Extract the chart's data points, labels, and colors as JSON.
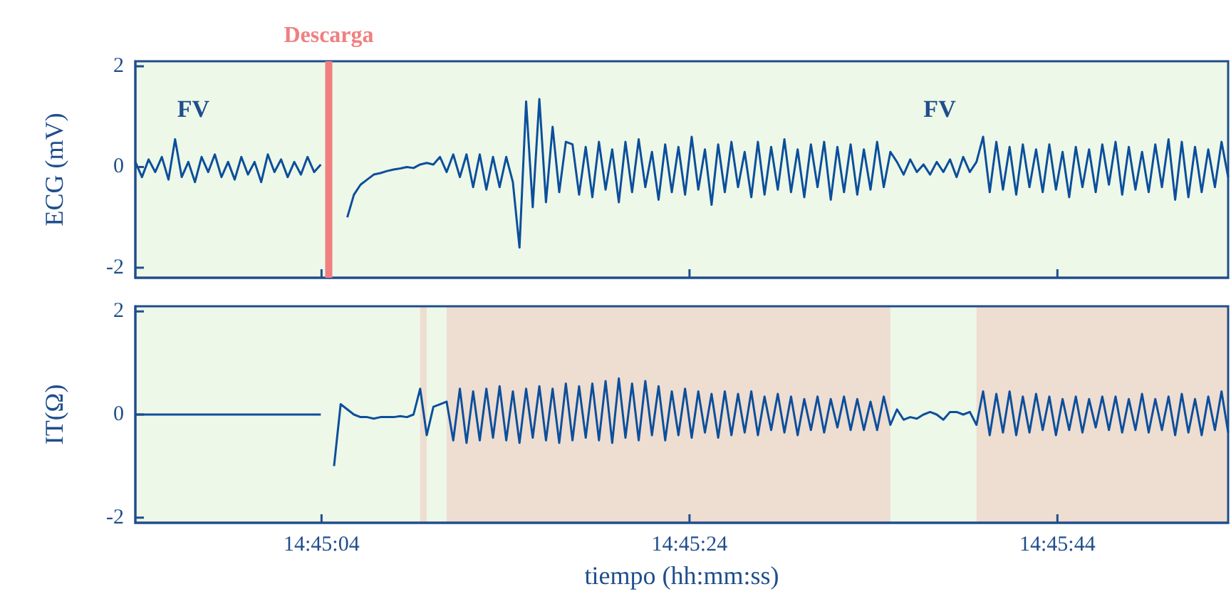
{
  "chart_data": [
    {
      "type": "line",
      "ylabel": "ECG (mV)",
      "xlim": [
        14.7483,
        14.7648
      ],
      "ylim": [
        -2.2,
        2.1
      ],
      "yticks": [
        -2,
        0,
        2
      ],
      "xticks": [
        {
          "value": 14.751111,
          "label": null
        },
        {
          "value": 14.756667,
          "label": null
        },
        {
          "value": 14.762222,
          "label": null
        }
      ],
      "tick_labels": "y",
      "marker": "none",
      "x": [
        14.7483,
        14.7484,
        14.7485,
        14.7486,
        14.7487,
        14.7488,
        14.7489,
        14.749,
        14.7491,
        14.7492,
        14.7493,
        14.7494,
        14.7495,
        14.7496,
        14.7497,
        14.7498,
        14.7499,
        14.75,
        14.7501,
        14.7502,
        14.7503,
        14.7504,
        14.7505,
        14.7506,
        14.7507,
        14.7508,
        14.7509,
        14.751,
        14.7511,
        14.7512,
        14.7513,
        14.7514,
        14.7515,
        14.7516,
        14.7517,
        14.7518,
        14.7519,
        14.752,
        14.7521,
        14.7522,
        14.7523,
        14.7524,
        14.7525,
        14.7526,
        14.7527,
        14.7528,
        14.7529,
        14.753,
        14.7531,
        14.7532,
        14.7533,
        14.7534,
        14.7535,
        14.7536,
        14.7537,
        14.7538,
        14.7539,
        14.754,
        14.7541,
        14.7542,
        14.7543,
        14.7544,
        14.7545,
        14.7546,
        14.7547,
        14.7548,
        14.7549,
        14.755,
        14.7551,
        14.7552,
        14.7553,
        14.7554,
        14.7555,
        14.7556,
        14.7557,
        14.7558,
        14.7559,
        14.756,
        14.7561,
        14.7562,
        14.7563,
        14.7564,
        14.7565,
        14.7566,
        14.7567,
        14.7568,
        14.7569,
        14.757,
        14.7571,
        14.7572,
        14.7573,
        14.7574,
        14.7575,
        14.7576,
        14.7577,
        14.7578,
        14.7579,
        14.758,
        14.7581,
        14.7582,
        14.7583,
        14.7584,
        14.7585,
        14.7586,
        14.7587,
        14.7588,
        14.7589,
        14.759,
        14.7591,
        14.7592,
        14.7593,
        14.7594,
        14.7595,
        14.7596,
        14.7597,
        14.7598,
        14.7599,
        14.76,
        14.7601,
        14.7602,
        14.7603,
        14.7604,
        14.7605,
        14.7606,
        14.7607,
        14.7608,
        14.7609,
        14.761,
        14.7611,
        14.7612,
        14.7613,
        14.7614,
        14.7615,
        14.7616,
        14.7617,
        14.7618,
        14.7619,
        14.762,
        14.7621,
        14.7622,
        14.7623,
        14.7624,
        14.7625,
        14.7626,
        14.7627,
        14.7628,
        14.7629,
        14.763,
        14.7631,
        14.7632,
        14.7633,
        14.7634,
        14.7635,
        14.7636,
        14.7637,
        14.7638,
        14.7639,
        14.764,
        14.7641,
        14.7642,
        14.7643,
        14.7644,
        14.7645,
        14.7646,
        14.7647,
        14.7648
      ],
      "series": [
        {
          "color": "#0b4f9c",
          "values": [
            0.1,
            -0.2,
            0.15,
            -0.1,
            0.2,
            -0.25,
            0.55,
            -0.2,
            0.1,
            -0.3,
            0.2,
            -0.1,
            0.25,
            -0.2,
            0.1,
            -0.25,
            0.2,
            -0.15,
            0.1,
            -0.3,
            0.25,
            -0.1,
            0.15,
            -0.2,
            0.1,
            -0.15,
            0.2,
            -0.1,
            0.05,
            null,
            null,
            null,
            -1.0,
            -0.55,
            -0.35,
            -0.25,
            -0.15,
            -0.12,
            -0.08,
            -0.05,
            -0.03,
            0.0,
            -0.02,
            0.05,
            0.08,
            0.05,
            0.2,
            -0.1,
            0.25,
            -0.2,
            0.25,
            -0.4,
            0.25,
            -0.45,
            0.2,
            -0.4,
            0.2,
            -0.3,
            -1.6,
            1.3,
            -0.8,
            1.35,
            -0.7,
            0.8,
            -0.5,
            0.5,
            0.45,
            -0.55,
            0.4,
            -0.6,
            0.5,
            -0.45,
            0.35,
            -0.7,
            0.5,
            -0.5,
            0.55,
            -0.4,
            0.3,
            -0.65,
            0.45,
            -0.5,
            0.4,
            -0.55,
            0.6,
            -0.45,
            0.35,
            -0.75,
            0.45,
            -0.5,
            0.5,
            -0.4,
            0.3,
            -0.6,
            0.5,
            -0.55,
            0.4,
            -0.45,
            0.55,
            -0.5,
            0.35,
            -0.6,
            0.45,
            -0.4,
            0.5,
            -0.65,
            0.4,
            -0.5,
            0.45,
            -0.55,
            0.35,
            -0.45,
            0.5,
            -0.4,
            0.3,
            0.1,
            -0.15,
            0.15,
            -0.1,
            0.05,
            -0.15,
            0.1,
            -0.1,
            0.15,
            -0.2,
            0.2,
            -0.1,
            0.1,
            0.6,
            -0.5,
            0.5,
            -0.45,
            0.4,
            -0.55,
            0.45,
            -0.4,
            0.35,
            -0.5,
            0.45,
            -0.45,
            0.3,
            -0.6,
            0.4,
            -0.4,
            0.35,
            -0.5,
            0.45,
            -0.35,
            0.5,
            -0.55,
            0.4,
            -0.45,
            0.3,
            -0.5,
            0.45,
            -0.4,
            0.55,
            -0.65,
            0.5,
            -0.6,
            0.4,
            -0.5,
            0.35,
            -0.4,
            0.5,
            -0.2
          ]
        }
      ],
      "ref_lines": [
        {
          "axis": "x",
          "value": 14.75122,
          "label": "Descarga",
          "color": "#f08080"
        }
      ],
      "annotations": [
        "FV",
        "FV"
      ]
    },
    {
      "type": "line",
      "ylabel": "IT(Ω)",
      "xlabel": "tiempo (hh:mm:ss)",
      "xlim": [
        14.7483,
        14.7648
      ],
      "ylim": [
        -2.1,
        2.1
      ],
      "yticks": [
        -2,
        0,
        2
      ],
      "xticks": [
        {
          "value": 14.751111,
          "label": "14:45:04"
        },
        {
          "value": 14.756667,
          "label": "14:45:24"
        },
        {
          "value": 14.762222,
          "label": "14:45:44"
        }
      ],
      "marker": "none",
      "x": [
        14.7483,
        14.7484,
        14.7485,
        14.7486,
        14.7487,
        14.7488,
        14.7489,
        14.749,
        14.7491,
        14.7492,
        14.7493,
        14.7494,
        14.7495,
        14.7496,
        14.7497,
        14.7498,
        14.7499,
        14.75,
        14.7501,
        14.7502,
        14.7503,
        14.7504,
        14.7505,
        14.7506,
        14.7507,
        14.7508,
        14.7509,
        14.751,
        14.7511,
        14.7512,
        14.7513,
        14.7514,
        14.7515,
        14.7516,
        14.7517,
        14.7518,
        14.7519,
        14.752,
        14.7521,
        14.7522,
        14.7523,
        14.7524,
        14.7525,
        14.7526,
        14.7527,
        14.7528,
        14.7529,
        14.753,
        14.7531,
        14.7532,
        14.7533,
        14.7534,
        14.7535,
        14.7536,
        14.7537,
        14.7538,
        14.7539,
        14.754,
        14.7541,
        14.7542,
        14.7543,
        14.7544,
        14.7545,
        14.7546,
        14.7547,
        14.7548,
        14.7549,
        14.755,
        14.7551,
        14.7552,
        14.7553,
        14.7554,
        14.7555,
        14.7556,
        14.7557,
        14.7558,
        14.7559,
        14.756,
        14.7561,
        14.7562,
        14.7563,
        14.7564,
        14.7565,
        14.7566,
        14.7567,
        14.7568,
        14.7569,
        14.757,
        14.7571,
        14.7572,
        14.7573,
        14.7574,
        14.7575,
        14.7576,
        14.7577,
        14.7578,
        14.7579,
        14.758,
        14.7581,
        14.7582,
        14.7583,
        14.7584,
        14.7585,
        14.7586,
        14.7587,
        14.7588,
        14.7589,
        14.759,
        14.7591,
        14.7592,
        14.7593,
        14.7594,
        14.7595,
        14.7596,
        14.7597,
        14.7598,
        14.7599,
        14.76,
        14.7601,
        14.7602,
        14.7603,
        14.7604,
        14.7605,
        14.7606,
        14.7607,
        14.7608,
        14.7609,
        14.761,
        14.7611,
        14.7612,
        14.7613,
        14.7614,
        14.7615,
        14.7616,
        14.7617,
        14.7618,
        14.7619,
        14.762,
        14.7621,
        14.7622,
        14.7623,
        14.7624,
        14.7625,
        14.7626,
        14.7627,
        14.7628,
        14.7629,
        14.763,
        14.7631,
        14.7632,
        14.7633,
        14.7634,
        14.7635,
        14.7636,
        14.7637,
        14.7638,
        14.7639,
        14.764,
        14.7641,
        14.7642,
        14.7643,
        14.7644,
        14.7645,
        14.7646,
        14.7647,
        14.7648
      ],
      "series": [
        {
          "color": "#0b4f9c",
          "values": [
            0,
            0,
            0,
            0,
            0,
            0,
            0,
            0,
            0,
            0,
            0,
            0,
            0,
            0,
            0,
            0,
            0,
            0,
            0,
            0,
            0,
            0,
            0,
            0,
            0,
            0,
            0,
            0,
            0,
            null,
            -1.0,
            0.2,
            0.1,
            0.0,
            -0.05,
            -0.05,
            -0.08,
            -0.05,
            -0.05,
            -0.05,
            -0.03,
            -0.05,
            0.0,
            0.5,
            -0.4,
            0.15,
            0.2,
            0.25,
            -0.5,
            0.5,
            -0.55,
            0.45,
            -0.5,
            0.5,
            -0.45,
            0.55,
            -0.5,
            0.45,
            -0.55,
            0.5,
            -0.45,
            0.55,
            -0.5,
            0.5,
            -0.55,
            0.6,
            -0.5,
            0.55,
            -0.45,
            0.6,
            -0.5,
            0.65,
            -0.55,
            0.7,
            -0.45,
            0.6,
            -0.5,
            0.65,
            -0.4,
            0.55,
            -0.5,
            0.45,
            -0.4,
            0.5,
            -0.45,
            0.45,
            -0.35,
            0.4,
            -0.45,
            0.45,
            -0.4,
            0.4,
            -0.35,
            0.45,
            -0.4,
            0.35,
            -0.3,
            0.4,
            -0.35,
            0.35,
            -0.4,
            0.3,
            -0.3,
            0.35,
            -0.35,
            0.3,
            -0.25,
            0.35,
            -0.3,
            0.3,
            -0.3,
            0.25,
            -0.3,
            0.35,
            -0.2,
            0.1,
            -0.1,
            -0.05,
            -0.08,
            0.0,
            0.05,
            0.0,
            -0.1,
            0.05,
            0.05,
            0.0,
            0.05,
            -0.2,
            0.45,
            -0.4,
            0.4,
            -0.35,
            0.45,
            -0.4,
            0.35,
            -0.35,
            0.4,
            -0.3,
            0.35,
            -0.4,
            0.3,
            -0.3,
            0.35,
            -0.35,
            0.3,
            -0.25,
            0.35,
            -0.3,
            0.35,
            -0.35,
            0.3,
            -0.3,
            0.4,
            -0.35,
            0.3,
            -0.3,
            0.35,
            -0.4,
            0.4,
            -0.35,
            0.3,
            -0.4,
            0.35,
            -0.3,
            0.45,
            -0.35
          ]
        }
      ],
      "bands": [
        {
          "axis": "x",
          "from": 14.7526,
          "to": 14.7527,
          "color": "#f08080"
        },
        {
          "axis": "x",
          "from": 14.753,
          "to": 14.7597,
          "color": "#f08080"
        },
        {
          "axis": "x",
          "from": 14.761,
          "to": 14.7648,
          "color": "#f08080"
        }
      ]
    }
  ]
}
